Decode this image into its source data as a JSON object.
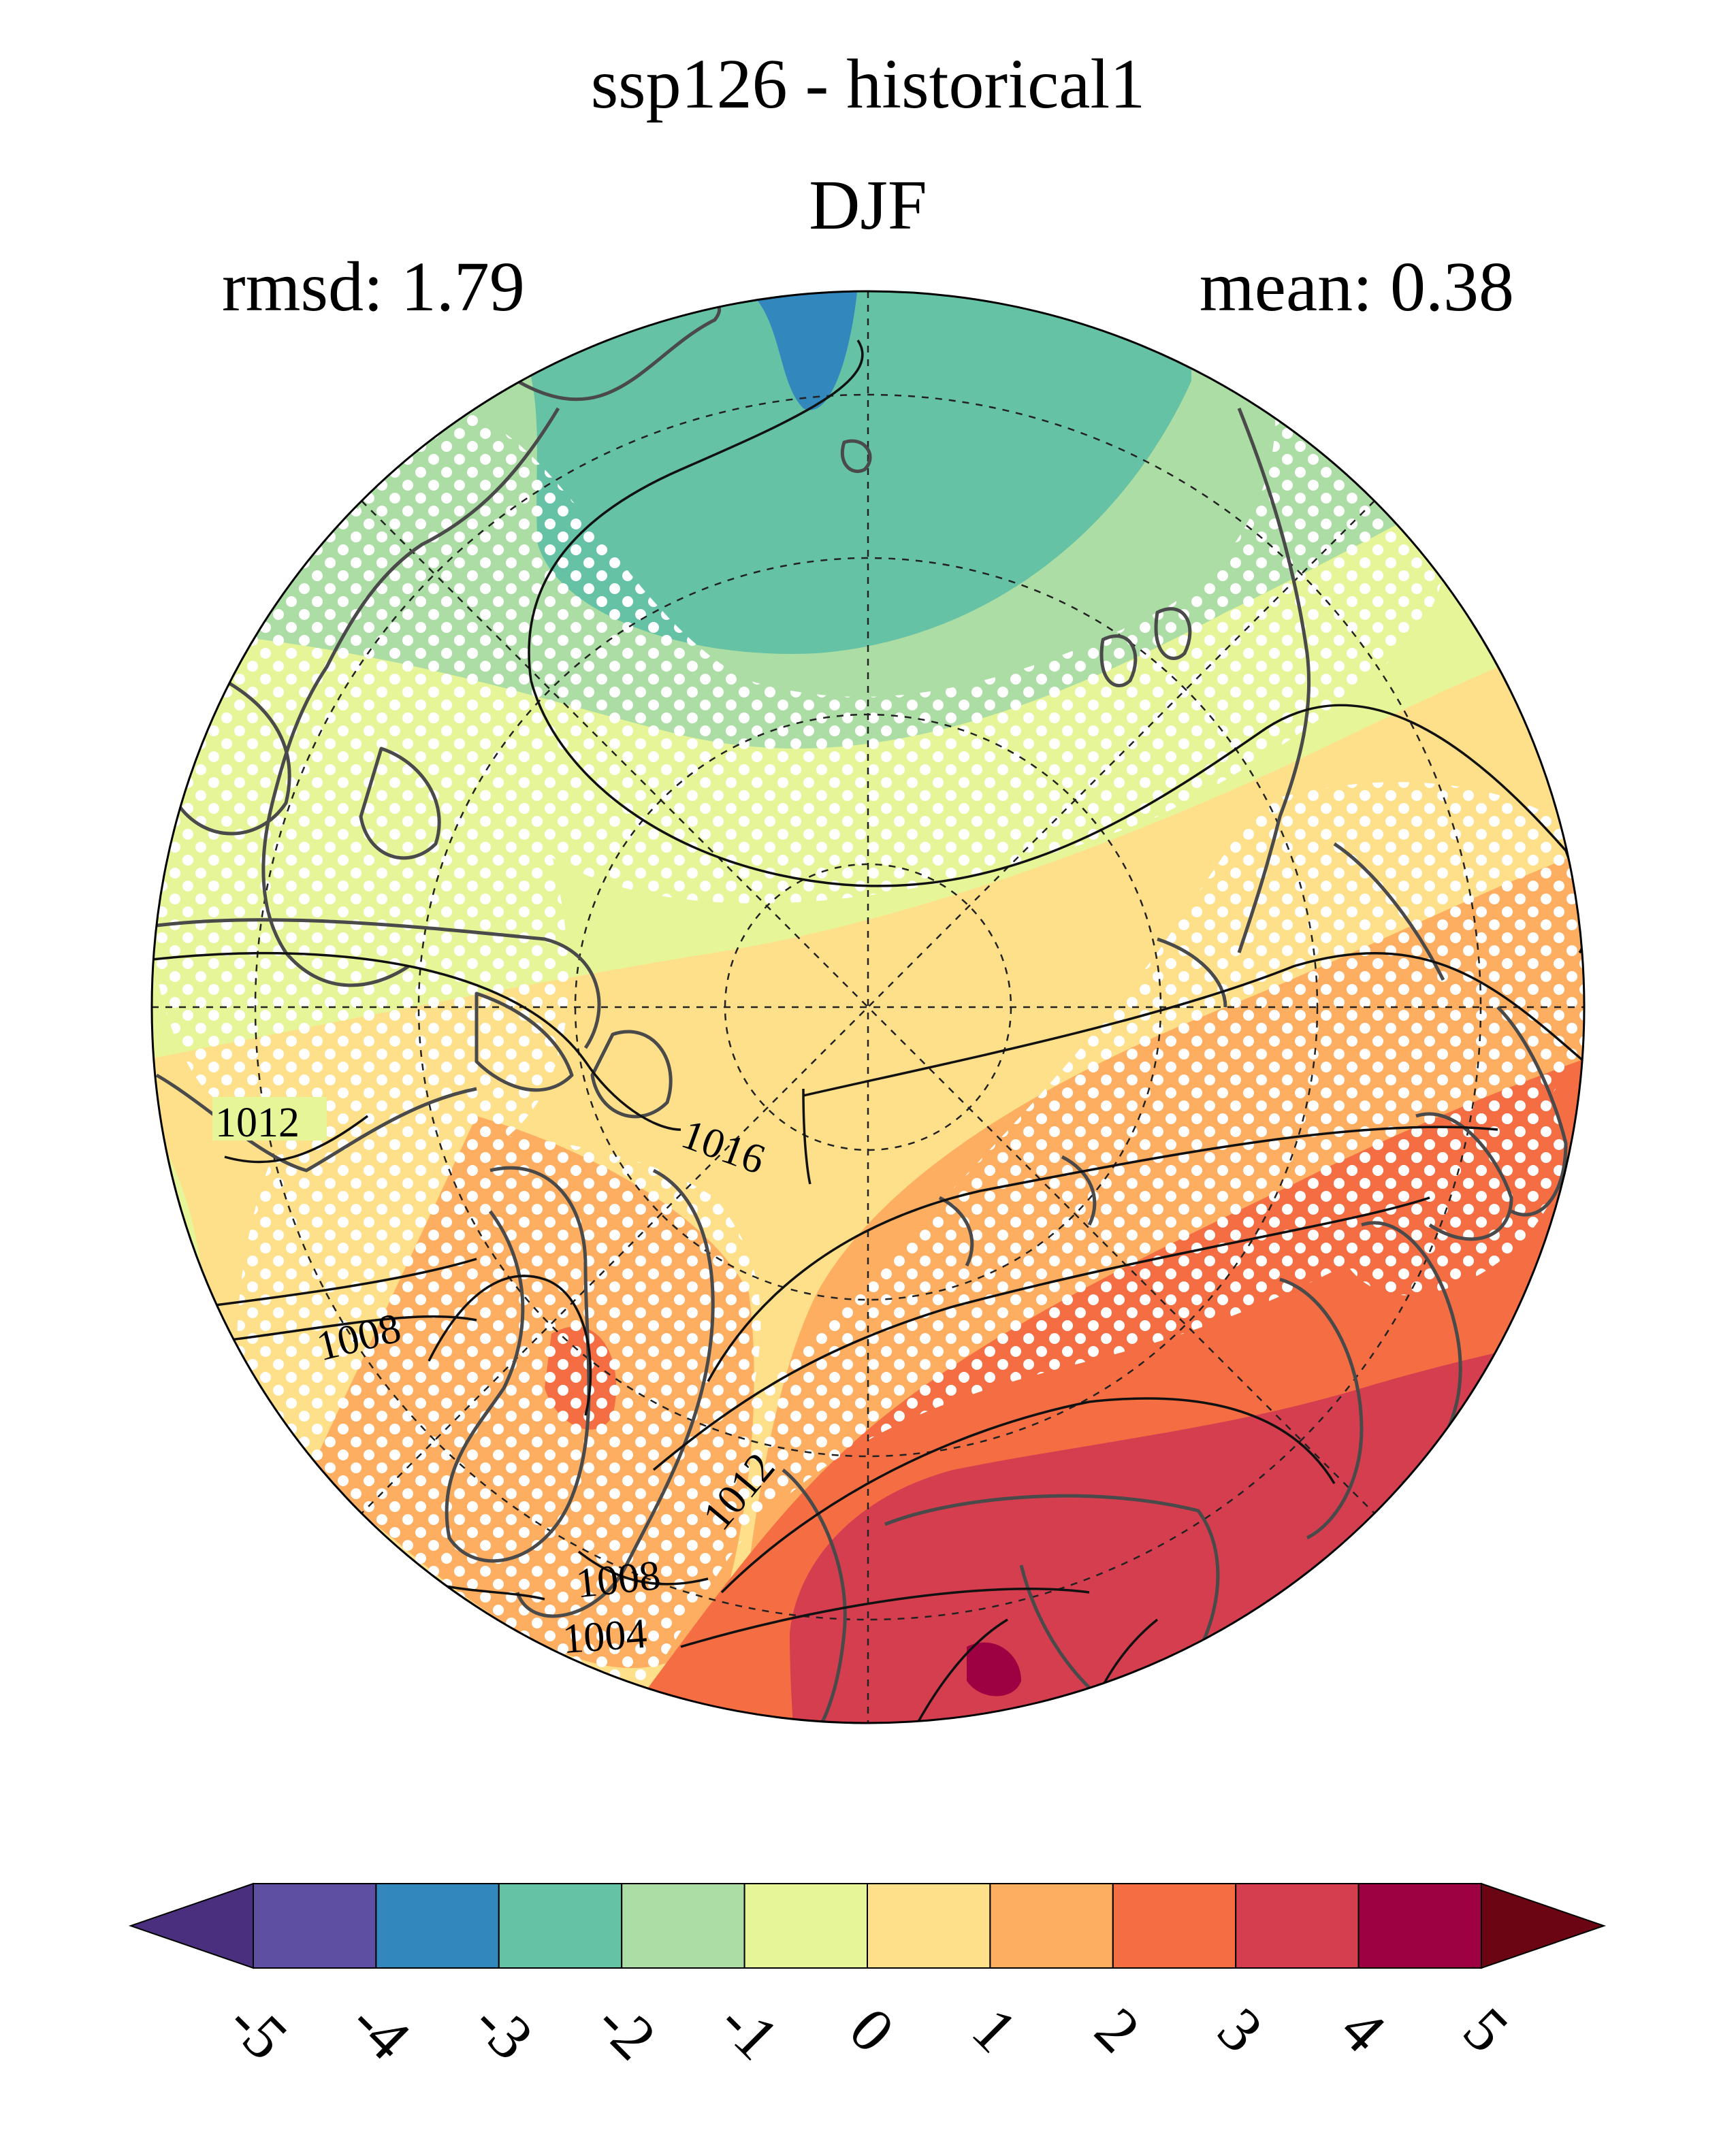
{
  "title": {
    "line1": "ssp126 - historical1",
    "line2": "DJF",
    "rmsd_label": "rmsd: 1.79",
    "mean_label": "mean: 0.38"
  },
  "map": {
    "projection": "north-polar-stereographic",
    "contour_labels": [
      "1012",
      "1016",
      "1008",
      "1012",
      "1008",
      "1004"
    ],
    "stippling": "white dots mark significant regions",
    "colors": {
      "land_outline": "#4a4a4a",
      "isobar": "#111111",
      "graticule": "#222222",
      "stipple": "#ffffff"
    }
  },
  "colorbar": {
    "ticks": [
      "-5",
      "-4",
      "-3",
      "-2",
      "-1",
      "0",
      "1",
      "2",
      "3",
      "4",
      "5"
    ],
    "under_color": "#4a2f7e",
    "over_color": "#6b0513",
    "colors": [
      "#5e4fa2",
      "#3288bd",
      "#66c2a5",
      "#abdda4",
      "#e6f598",
      "#fee08b",
      "#fdae61",
      "#f46d43",
      "#d53e4f",
      "#9e0142"
    ]
  }
}
